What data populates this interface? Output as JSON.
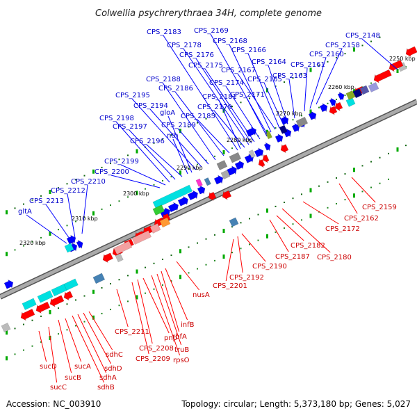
{
  "title": "Colwellia psychrerythraea 34H, complete genome",
  "footer": {
    "accession": "Accession: NC_003910",
    "summary": "Topology: circular; Length: 5,373,180 bp; Genes: 5,027"
  },
  "colors": {
    "backbone": "#808080",
    "forward_gene": "#0000ff",
    "reverse_gene": "#ff0000",
    "label_forward": "#0000cc",
    "label_reverse": "#cc0000",
    "tick_green": "#00aa00",
    "cog_cyan": "#00e0e0",
    "cog_green": "#33cc33",
    "cog_magenta": "#ff33cc",
    "cog_gray": "#888888",
    "cog_pink": "#f4a0a0",
    "cog_orange": "#ff9933",
    "cog_steel": "#4682b4",
    "cog_olive": "#88aa22",
    "cog_navy": "#000080",
    "cog_lavender": "#9999dd"
  },
  "kbp_labels": [
    "2250 kbp",
    "2260 kbp",
    "2270 kbp",
    "2280 kbp",
    "2290 kbp",
    "2300 kbp",
    "2310 kbp",
    "2320 kbp"
  ],
  "top_labels": [
    "CPS_2148",
    "CPS_2158",
    "CPS_2160",
    "CPS_2161",
    "CPS_2163",
    "CPS_2164",
    "CPS_2165",
    "CPS_2166",
    "CPS_2167",
    "CPS_2168",
    "CPS_2169",
    "CPS_2171",
    "CPS_2174",
    "CPS_2175",
    "CPS_2176",
    "CPS_2178",
    "CPS_2179",
    "CPS_2181",
    "CPS_2183",
    "CPS_2185",
    "CPS_2186",
    "CPS_2188",
    "CPS_2189",
    "CPS_2194",
    "CPS_2195",
    "gloA",
    "nth",
    "CPS_2196",
    "CPS_2197",
    "CPS_2198",
    "CPS_2199",
    "CPS_2200",
    "CPS_2210",
    "CPS_2212",
    "CPS_2213",
    "gltA"
  ],
  "bottom_labels": [
    "CPS_2159",
    "CPS_2162",
    "CPS_2172",
    "CPS_2180",
    "CPS_2182",
    "CPS_2187",
    "CPS_2190",
    "CPS_2192",
    "CPS_2201",
    "nusA",
    "infB",
    "rbfA",
    "truB",
    "rpsO",
    "pnp",
    "CPS_2208",
    "CPS_2209",
    "CPS_2211",
    "sdhC",
    "sdhD",
    "sdhA",
    "sdhB",
    "sucA",
    "sucB",
    "sucC",
    "sucD"
  ]
}
